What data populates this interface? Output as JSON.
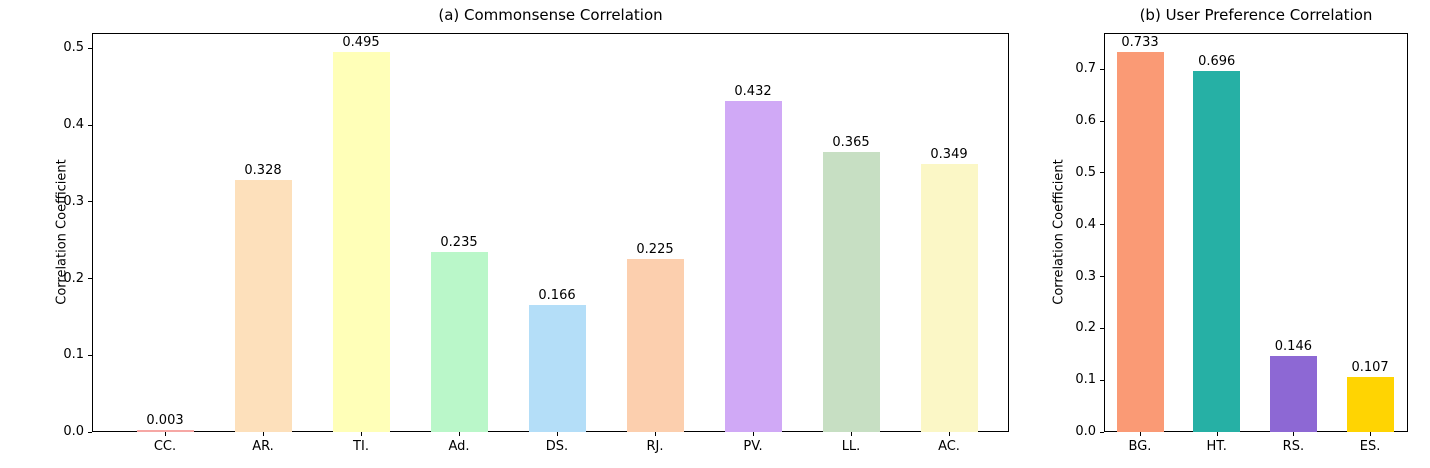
{
  "figure": {
    "background": "#ffffff",
    "text_color": "#000000"
  },
  "chart_data": [
    {
      "type": "bar",
      "title": "(a) Commonsense Correlation",
      "ylabel": "Correlation Coefficient",
      "xlabel": "",
      "categories": [
        "CC.",
        "AR.",
        "TI.",
        "Ad.",
        "DS.",
        "RJ.",
        "PV.",
        "LL.",
        "AC."
      ],
      "values": [
        0.003,
        0.328,
        0.495,
        0.235,
        0.166,
        0.225,
        0.432,
        0.365,
        0.349
      ],
      "value_labels": [
        "0.003",
        "0.328",
        "0.495",
        "0.235",
        "0.166",
        "0.225",
        "0.432",
        "0.365",
        "0.349"
      ],
      "bar_colors": [
        "#f6a7a4",
        "#fde0bb",
        "#ffffb8",
        "#baf7c9",
        "#b4def8",
        "#fccfae",
        "#d0a9f6",
        "#c7dfc3",
        "#fbf7c6"
      ],
      "yticks": [
        0.0,
        0.1,
        0.2,
        0.3,
        0.4,
        0.5
      ],
      "ytick_labels": [
        "0.0",
        "0.1",
        "0.2",
        "0.3",
        "0.4",
        "0.5"
      ],
      "ylim": [
        0,
        0.52
      ],
      "grid": false,
      "legend": null
    },
    {
      "type": "bar",
      "title": "(b) User Preference Correlation",
      "ylabel": "Correlation Coefficient",
      "xlabel": "",
      "categories": [
        "BG.",
        "HT.",
        "RS.",
        "ES."
      ],
      "values": [
        0.733,
        0.696,
        0.146,
        0.107
      ],
      "value_labels": [
        "0.733",
        "0.696",
        "0.146",
        "0.107"
      ],
      "bar_colors": [
        "#fa9a75",
        "#26b0a5",
        "#8d68d4",
        "#ffd402"
      ],
      "yticks": [
        0.0,
        0.1,
        0.2,
        0.3,
        0.4,
        0.5,
        0.6,
        0.7
      ],
      "ytick_labels": [
        "0.0",
        "0.1",
        "0.2",
        "0.3",
        "0.4",
        "0.5",
        "0.6",
        "0.7"
      ],
      "ylim": [
        0,
        0.77
      ],
      "grid": false,
      "legend": null
    }
  ]
}
